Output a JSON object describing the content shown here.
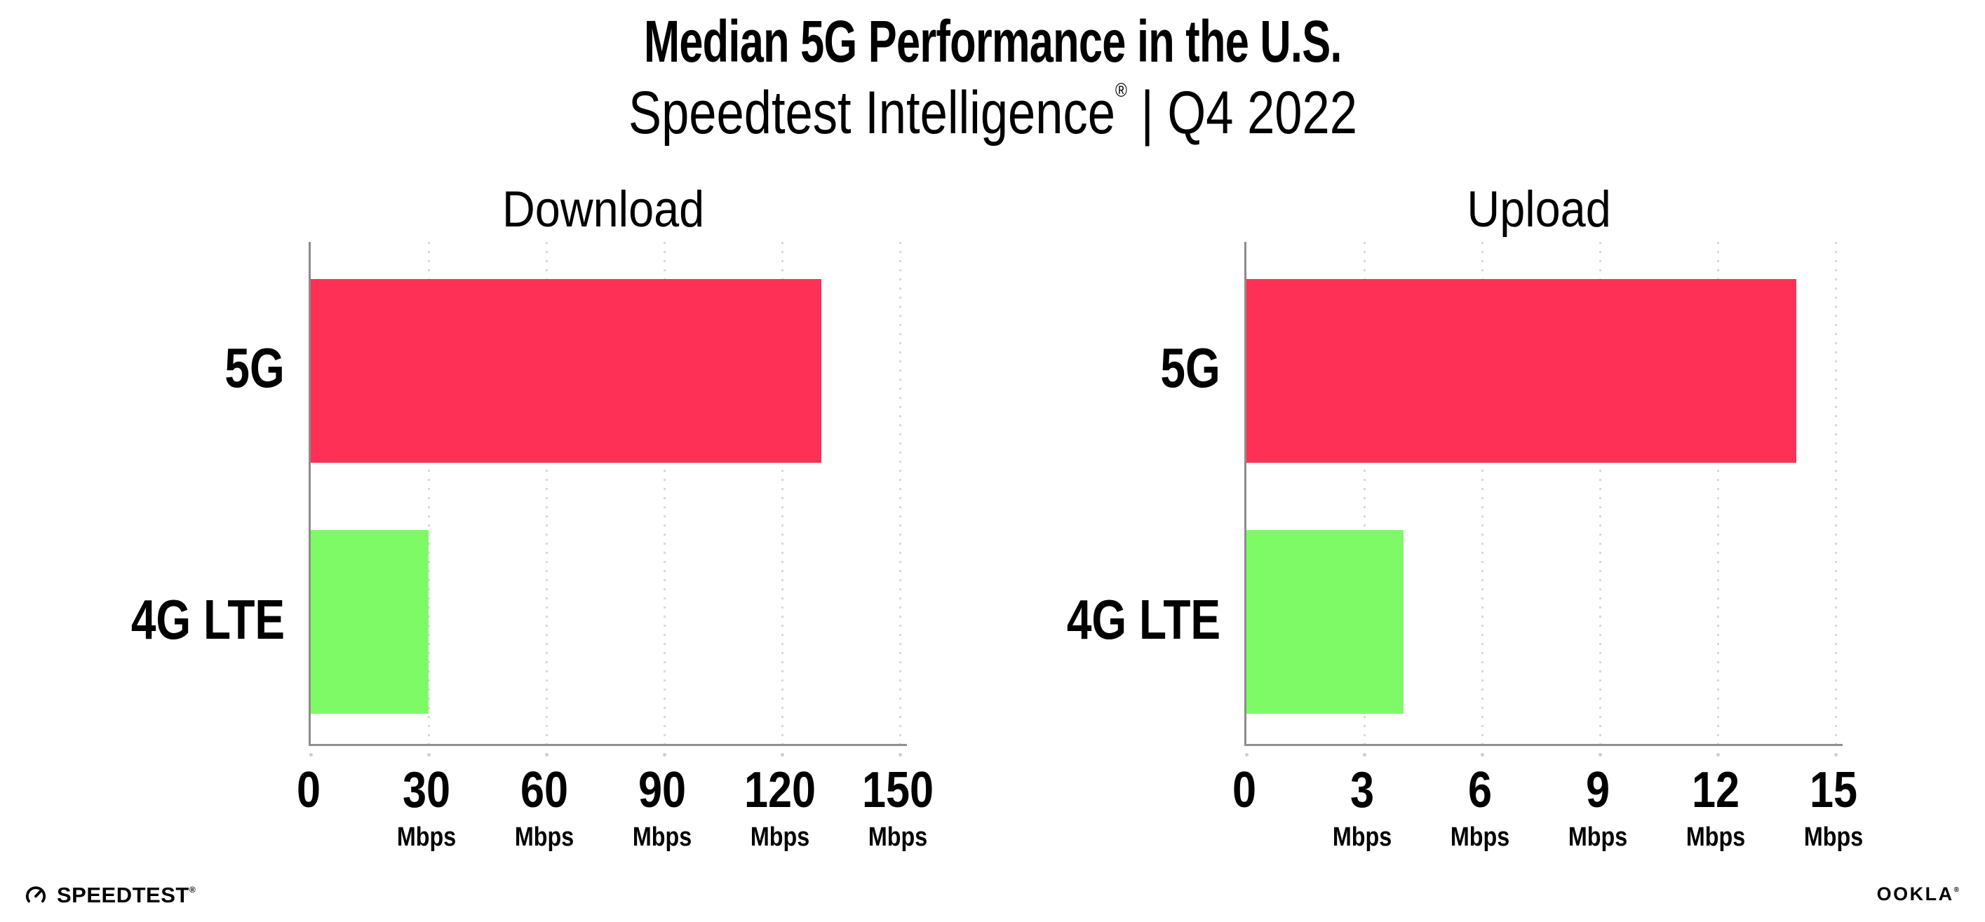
{
  "header": {
    "title": "Median 5G Performance in the U.S.",
    "subtitle_brand": "Speedtest Intelligence",
    "subtitle_reg": "®",
    "subtitle_rest": " | Q4 2022"
  },
  "chart_data": [
    {
      "type": "bar",
      "orientation": "horizontal",
      "title": "Download",
      "categories": [
        "5G",
        "4G LTE"
      ],
      "values": [
        130,
        30
      ],
      "unit": "Mbps",
      "ticks": [
        0,
        30,
        60,
        90,
        120,
        150
      ],
      "xlim": [
        0,
        150
      ],
      "xmax": 150,
      "bar_colors": [
        "#FF3056",
        "#7EFA67"
      ],
      "grid": "dotted-vertical"
    },
    {
      "type": "bar",
      "orientation": "horizontal",
      "title": "Upload",
      "categories": [
        "5G",
        "4G LTE"
      ],
      "values": [
        14,
        4
      ],
      "unit": "Mbps",
      "ticks": [
        0,
        3,
        6,
        9,
        12,
        15
      ],
      "xlim": [
        0,
        15
      ],
      "xmax": 15,
      "bar_colors": [
        "#FF3056",
        "#7EFA67"
      ],
      "grid": "dotted-vertical"
    }
  ],
  "colors": {
    "bar_5g": "#FF3056",
    "bar_4g_lte": "#7EFA67",
    "gridline": "#D9D9D9",
    "axis": "#8C8C8C",
    "tick_dot": "#C9CEDC",
    "text": "#000000",
    "background": "#FFFFFF"
  },
  "footer": {
    "brand_left": "SPEEDTEST",
    "brand_left_mark": "®",
    "brand_left_icon": "gauge-icon",
    "brand_right": "OOKLA",
    "brand_right_mark": "®"
  }
}
